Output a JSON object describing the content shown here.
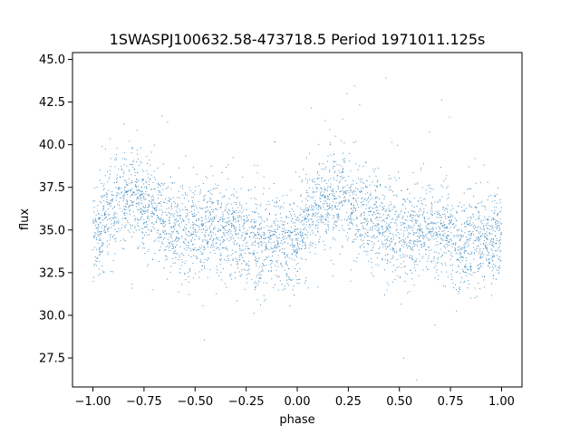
{
  "chart_data": {
    "type": "scatter",
    "title": "1SWASPJ100632.58-473718.5 Period 1971011.125s",
    "xlabel": "phase",
    "ylabel": "flux",
    "xlim": [
      -1.1,
      1.1
    ],
    "ylim": [
      25.8,
      45.4
    ],
    "xticks": [
      -1.0,
      -0.75,
      -0.5,
      -0.25,
      0.0,
      0.25,
      0.5,
      0.75,
      1.0
    ],
    "xtick_labels": [
      "−1.00",
      "−0.75",
      "−0.50",
      "−0.25",
      "0.00",
      "0.25",
      "0.50",
      "0.75",
      "1.00"
    ],
    "yticks": [
      27.5,
      30.0,
      32.5,
      35.0,
      37.5,
      40.0,
      42.5,
      45.0
    ],
    "ytick_labels": [
      "27.5",
      "30.0",
      "32.5",
      "35.0",
      "37.5",
      "40.0",
      "42.5",
      "45.0"
    ],
    "grid": false,
    "marker_color": "#1f77b4",
    "series": [
      {
        "x": [
          -1.0,
          -0.95,
          -0.9,
          -0.85,
          -0.8,
          -0.75,
          -0.7,
          -0.65,
          -0.6,
          -0.55,
          -0.5,
          -0.45,
          -0.4,
          -0.35,
          -0.3,
          -0.25,
          -0.2,
          -0.15,
          -0.1,
          -0.05,
          0.0,
          0.05,
          0.1,
          0.15,
          0.2,
          0.25,
          0.3,
          0.35,
          0.4,
          0.45,
          0.5,
          0.55,
          0.6,
          0.65,
          0.7,
          0.75,
          0.8,
          0.85,
          0.9,
          0.95,
          1.0
        ],
        "y": [
          34.6,
          35.6,
          36.2,
          36.8,
          36.9,
          36.6,
          36.2,
          35.6,
          35.3,
          35.0,
          35.0,
          34.9,
          35.2,
          35.1,
          34.9,
          34.6,
          34.3,
          34.0,
          34.4,
          34.2,
          34.6,
          35.6,
          36.2,
          36.8,
          36.9,
          36.6,
          36.2,
          35.6,
          35.3,
          35.0,
          35.0,
          34.9,
          35.2,
          35.1,
          34.9,
          34.6,
          34.3,
          34.0,
          34.4,
          34.2,
          34.6
        ]
      }
    ]
  }
}
